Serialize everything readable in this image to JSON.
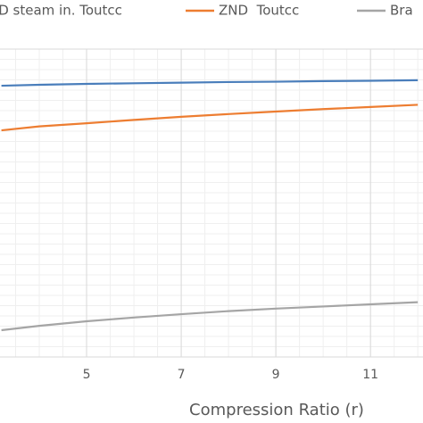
{
  "chart_data": {
    "type": "line",
    "x_label": "Compression Ratio (r)",
    "x": [
      3.2,
      4,
      5,
      6,
      7,
      8,
      9,
      10,
      11,
      12
    ],
    "series": [
      {
        "name": "ND steam in. Toutcc",
        "color": "#4a7ebb",
        "values": [
          88.1,
          88.4,
          88.7,
          88.9,
          89.1,
          89.3,
          89.4,
          89.6,
          89.7,
          89.9
        ]
      },
      {
        "name": "ZND  Toutcc",
        "color": "#ed7d31",
        "values": [
          73.6,
          74.9,
          75.9,
          77.0,
          78.0,
          78.9,
          79.7,
          80.5,
          81.2,
          81.9
        ]
      },
      {
        "name": "Bra",
        "color": "#a5a5a5",
        "values": [
          8.7,
          10.1,
          11.6,
          12.8,
          13.9,
          14.9,
          15.7,
          16.4,
          17.1,
          17.8
        ]
      }
    ],
    "xlim": [
      3.17,
      12.11
    ],
    "xticks": [
      5,
      7,
      9,
      11
    ],
    "ylim": [
      0,
      100
    ],
    "grid": true
  }
}
